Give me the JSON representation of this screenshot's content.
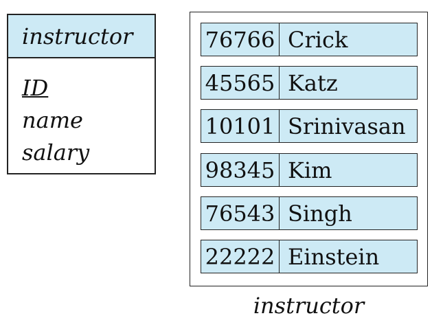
{
  "entity": {
    "name": "instructor",
    "attributes": [
      {
        "label": "ID",
        "primary_key": true
      },
      {
        "label": "name",
        "primary_key": false
      },
      {
        "label": "salary",
        "primary_key": false
      }
    ]
  },
  "entity_set": {
    "caption": "instructor",
    "rows": [
      {
        "id": "76766",
        "name": "Crick"
      },
      {
        "id": "45565",
        "name": "Katz"
      },
      {
        "id": "10101",
        "name": "Srinivasan"
      },
      {
        "id": "98345",
        "name": "Kim"
      },
      {
        "id": "76543",
        "name": "Singh"
      },
      {
        "id": "22222",
        "name": "Einstein"
      }
    ]
  },
  "colors": {
    "fill": "#cdeaf5",
    "stroke": "#222222"
  }
}
